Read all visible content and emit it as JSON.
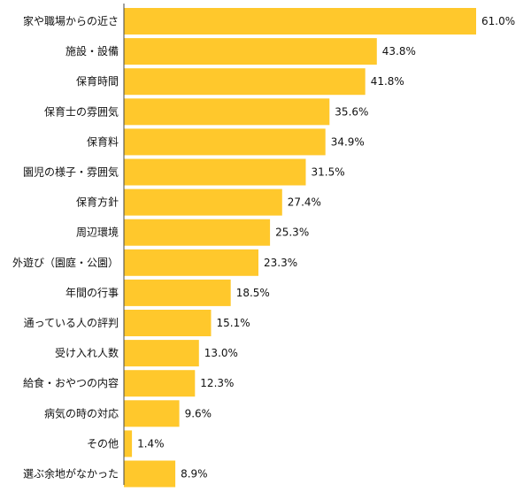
{
  "colors": {
    "bar": "#FFC82C",
    "axis": "#444444",
    "text": "#111111"
  },
  "chart_data": {
    "type": "bar",
    "orientation": "horizontal",
    "title": "",
    "xlabel": "",
    "ylabel": "",
    "xlim": [
      0,
      65
    ],
    "grid": false,
    "legend": "none",
    "value_suffix": "%",
    "categories": [
      "家や職場からの近さ",
      "施設・設備",
      "保育時間",
      "保育士の雰囲気",
      "保育料",
      "園児の様子・雰囲気",
      "保育方針",
      "周辺環境",
      "外遊び（園庭・公園）",
      "年間の行事",
      "通っている人の評判",
      "受け入れ人数",
      "給食・おやつの内容",
      "病気の時の対応",
      "その他",
      "選ぶ余地がなかった"
    ],
    "values": [
      61.0,
      43.8,
      41.8,
      35.6,
      34.9,
      31.5,
      27.4,
      25.3,
      23.3,
      18.5,
      15.1,
      13.0,
      12.3,
      9.6,
      1.4,
      8.9
    ],
    "value_labels": [
      "61.0%",
      "43.8%",
      "41.8%",
      "35.6%",
      "34.9%",
      "31.5%",
      "27.4%",
      "25.3%",
      "23.3%",
      "18.5%",
      "15.1%",
      "13.0%",
      "12.3%",
      "9.6%",
      "1.4%",
      "8.9%"
    ]
  }
}
